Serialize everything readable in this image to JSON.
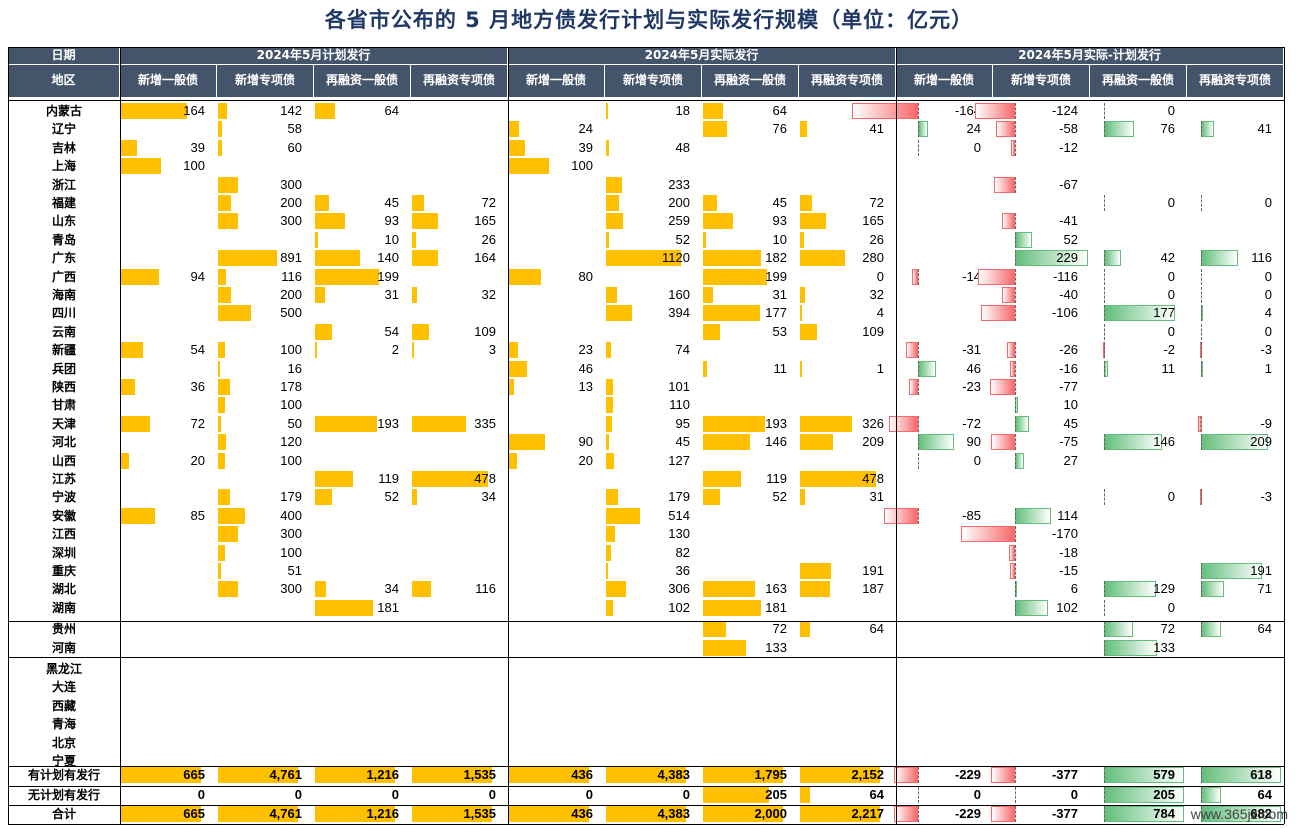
{
  "title": "各省市公布的 5 月地方债发行计划与实际发行规模（单位：亿元）",
  "header": {
    "row1": [
      "日期",
      "2024年5月计划发行",
      "2024年5月实际发行",
      "2024年5月实际-计划发行"
    ],
    "row2": [
      "地区",
      "新增一般债",
      "新增专项债",
      "再融资一般债",
      "再融资专项债",
      "新增一般债",
      "新增专项债",
      "再融资一般债",
      "再融资专项债",
      "新增一般债",
      "新增专项债",
      "再融资一般债",
      "再融资专项债"
    ]
  },
  "rows": [
    {
      "name": "内蒙古",
      "v": [
        164,
        142,
        64,
        null,
        null,
        18,
        64,
        null,
        -164,
        -124,
        0,
        null
      ]
    },
    {
      "name": "辽宁",
      "v": [
        null,
        58,
        null,
        null,
        24,
        null,
        76,
        41,
        24,
        -58,
        76,
        41
      ]
    },
    {
      "name": "吉林",
      "v": [
        39,
        60,
        null,
        null,
        39,
        48,
        null,
        null,
        0,
        -12,
        null,
        null
      ]
    },
    {
      "name": "上海",
      "v": [
        100,
        null,
        null,
        null,
        100,
        null,
        null,
        null,
        null,
        null,
        null,
        null
      ]
    },
    {
      "name": "浙江",
      "v": [
        null,
        300,
        null,
        null,
        null,
        233,
        null,
        null,
        null,
        -67,
        null,
        null
      ]
    },
    {
      "name": "福建",
      "v": [
        null,
        200,
        45,
        72,
        null,
        200,
        45,
        72,
        null,
        null,
        0,
        0
      ]
    },
    {
      "name": "山东",
      "v": [
        null,
        300,
        93,
        165,
        null,
        259,
        93,
        165,
        null,
        -41,
        null,
        null
      ]
    },
    {
      "name": "青岛",
      "v": [
        null,
        null,
        10,
        26,
        null,
        52,
        10,
        26,
        null,
        52,
        null,
        null
      ]
    },
    {
      "name": "广东",
      "v": [
        null,
        891,
        140,
        164,
        null,
        1120,
        182,
        280,
        null,
        229,
        42,
        116
      ]
    },
    {
      "name": "广西",
      "v": [
        94,
        116,
        199,
        null,
        80,
        null,
        199,
        0,
        -14,
        -116,
        0,
        0
      ]
    },
    {
      "name": "海南",
      "v": [
        null,
        200,
        31,
        32,
        null,
        160,
        31,
        32,
        null,
        -40,
        0,
        0
      ]
    },
    {
      "name": "四川",
      "v": [
        null,
        500,
        null,
        null,
        null,
        394,
        177,
        4,
        null,
        -106,
        177,
        4
      ]
    },
    {
      "name": "云南",
      "v": [
        null,
        null,
        54,
        109,
        null,
        null,
        53,
        109,
        null,
        null,
        0,
        0
      ]
    },
    {
      "name": "新疆",
      "v": [
        54,
        100,
        2,
        3,
        23,
        74,
        null,
        null,
        -31,
        -26,
        -2,
        -3
      ]
    },
    {
      "name": "兵团",
      "v": [
        null,
        16,
        null,
        null,
        46,
        null,
        11,
        1,
        46,
        -16,
        11,
        1
      ]
    },
    {
      "name": "陕西",
      "v": [
        36,
        178,
        null,
        null,
        13,
        101,
        null,
        null,
        -23,
        -77,
        null,
        null
      ]
    },
    {
      "name": "甘肃",
      "v": [
        null,
        100,
        null,
        null,
        null,
        110,
        null,
        null,
        null,
        10,
        null,
        null
      ]
    },
    {
      "name": "天津",
      "v": [
        72,
        50,
        193,
        335,
        null,
        95,
        193,
        326,
        -72,
        45,
        null,
        -9
      ]
    },
    {
      "name": "河北",
      "v": [
        null,
        120,
        null,
        null,
        90,
        45,
        146,
        209,
        90,
        -75,
        146,
        209
      ]
    },
    {
      "name": "山西",
      "v": [
        20,
        100,
        null,
        null,
        20,
        127,
        null,
        null,
        0,
        27,
        null,
        null
      ]
    },
    {
      "name": "江苏",
      "v": [
        null,
        null,
        119,
        478,
        null,
        null,
        119,
        478,
        null,
        null,
        null,
        null
      ]
    },
    {
      "name": "宁波",
      "v": [
        null,
        179,
        52,
        34,
        null,
        179,
        52,
        31,
        null,
        null,
        0,
        -3
      ]
    },
    {
      "name": "安徽",
      "v": [
        85,
        400,
        null,
        null,
        null,
        514,
        null,
        null,
        -85,
        114,
        null,
        null
      ]
    },
    {
      "name": "江西",
      "v": [
        null,
        300,
        null,
        null,
        null,
        130,
        null,
        null,
        null,
        -170,
        null,
        null
      ]
    },
    {
      "name": "深圳",
      "v": [
        null,
        100,
        null,
        null,
        null,
        82,
        null,
        null,
        null,
        -18,
        null,
        null
      ]
    },
    {
      "name": "重庆",
      "v": [
        null,
        51,
        null,
        null,
        null,
        36,
        null,
        191,
        null,
        -15,
        null,
        191
      ]
    },
    {
      "name": "湖北",
      "v": [
        null,
        300,
        34,
        116,
        null,
        306,
        163,
        187,
        null,
        6,
        129,
        71
      ]
    },
    {
      "name": "湖南",
      "v": [
        null,
        null,
        181,
        null,
        null,
        102,
        181,
        null,
        null,
        102,
        0,
        null
      ]
    },
    {
      "name": "贵州",
      "v": [
        null,
        null,
        null,
        null,
        null,
        null,
        72,
        64,
        null,
        null,
        72,
        64
      ]
    },
    {
      "name": "河南",
      "v": [
        null,
        null,
        null,
        null,
        null,
        null,
        133,
        null,
        null,
        null,
        133,
        null
      ]
    },
    {
      "name": "黑龙江",
      "v": [
        null,
        null,
        null,
        null,
        null,
        null,
        null,
        null,
        null,
        null,
        null,
        null
      ]
    },
    {
      "name": "大连",
      "v": [
        null,
        null,
        null,
        null,
        null,
        null,
        null,
        null,
        null,
        null,
        null,
        null
      ]
    },
    {
      "name": "西藏",
      "v": [
        null,
        null,
        null,
        null,
        null,
        null,
        null,
        null,
        null,
        null,
        null,
        null
      ]
    },
    {
      "name": "青海",
      "v": [
        null,
        null,
        null,
        null,
        null,
        null,
        null,
        null,
        null,
        null,
        null,
        null
      ]
    },
    {
      "name": "北京",
      "v": [
        null,
        null,
        null,
        null,
        null,
        null,
        null,
        null,
        null,
        null,
        null,
        null
      ]
    },
    {
      "name": "宁夏",
      "v": [
        null,
        null,
        null,
        null,
        null,
        null,
        null,
        null,
        null,
        null,
        null,
        null
      ]
    }
  ],
  "totals": [
    {
      "name": "有计划有发行",
      "v": [
        "665",
        "4,761",
        "1,216",
        "1,535",
        "436",
        "4,383",
        "1,795",
        "2,152",
        "-229",
        "-377",
        "579",
        "618"
      ],
      "n": [
        665,
        4761,
        1216,
        1535,
        436,
        4383,
        1795,
        2152,
        -229,
        -377,
        579,
        618
      ]
    },
    {
      "name": "无计划有发行",
      "v": [
        "0",
        "0",
        "0",
        "0",
        "0",
        "0",
        "205",
        "64",
        "0",
        "0",
        "205",
        "64"
      ],
      "n": [
        0,
        0,
        0,
        0,
        0,
        0,
        205,
        64,
        0,
        0,
        205,
        64
      ]
    },
    {
      "name": "合计",
      "v": [
        "665",
        "4,761",
        "1,216",
        "1,535",
        "436",
        "4,383",
        "2,000",
        "2,217",
        "-229",
        "-377",
        "784",
        "682"
      ],
      "n": [
        665,
        4761,
        1216,
        1535,
        436,
        4383,
        2000,
        2217,
        -229,
        -377,
        784,
        682
      ]
    }
  ],
  "colors": {
    "header": "#44546a",
    "title": "#1f3864",
    "bar": "#ffc000",
    "pos": "#63be7b",
    "neg": "#f8696b"
  },
  "watermark": "www.365jz.com"
}
